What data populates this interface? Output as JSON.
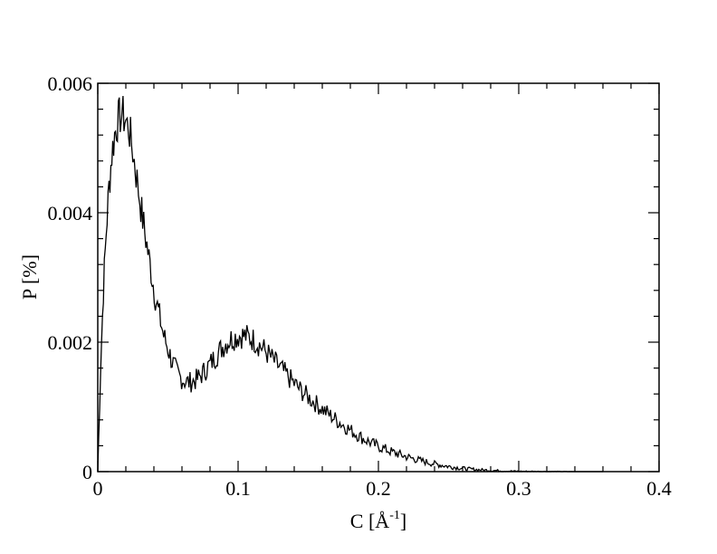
{
  "chart_data": {
    "type": "line",
    "title": "",
    "xlabel_main": "C [Å",
    "xlabel_sup": "-1",
    "xlabel_close": "]",
    "ylabel": "P [%]",
    "xlim": [
      0,
      0.4
    ],
    "ylim": [
      0,
      0.006
    ],
    "x_ticks": [
      0,
      0.1,
      0.2,
      0.3,
      0.4
    ],
    "x_tick_labels": [
      "0",
      "0.1",
      "0.2",
      "0.3",
      "0.4"
    ],
    "y_ticks": [
      0,
      0.002,
      0.004,
      0.006
    ],
    "y_tick_labels": [
      "0",
      "0.002",
      "0.004",
      "0.006"
    ],
    "grid": false,
    "line_color": "#000000",
    "series": [
      {
        "x": [
          0.0,
          0.002,
          0.004,
          0.006,
          0.008,
          0.01,
          0.012,
          0.014,
          0.016,
          0.018,
          0.02,
          0.022,
          0.024,
          0.026,
          0.028,
          0.03,
          0.032,
          0.035,
          0.038,
          0.041,
          0.044,
          0.047,
          0.05,
          0.053,
          0.056,
          0.059,
          0.062,
          0.065,
          0.068,
          0.071,
          0.074,
          0.077,
          0.08,
          0.083,
          0.086,
          0.089,
          0.092,
          0.095,
          0.098,
          0.101,
          0.104,
          0.107,
          0.11,
          0.113,
          0.116,
          0.12,
          0.125,
          0.13,
          0.135,
          0.14,
          0.145,
          0.15,
          0.155,
          0.16,
          0.165,
          0.17,
          0.175,
          0.18,
          0.185,
          0.19,
          0.195,
          0.2,
          0.21,
          0.22,
          0.23,
          0.24,
          0.25,
          0.26,
          0.27,
          0.28,
          0.29,
          0.3,
          0.31,
          0.32,
          0.33,
          0.34,
          0.35,
          0.36
        ],
        "y": [
          0.0,
          0.0016,
          0.0028,
          0.0037,
          0.0044,
          0.0049,
          0.0052,
          0.0054,
          0.0055,
          0.0055,
          0.0054,
          0.0053,
          0.0051,
          0.0048,
          0.0045,
          0.0042,
          0.0039,
          0.0035,
          0.0031,
          0.0027,
          0.0024,
          0.0021,
          0.0019,
          0.0017,
          0.00155,
          0.00145,
          0.0014,
          0.00138,
          0.0014,
          0.00143,
          0.0015,
          0.00158,
          0.00166,
          0.00175,
          0.00184,
          0.00193,
          0.002,
          0.00205,
          0.00208,
          0.0021,
          0.0021,
          0.00208,
          0.00205,
          0.002,
          0.00194,
          0.00185,
          0.00172,
          0.0016,
          0.00148,
          0.00136,
          0.00125,
          0.00115,
          0.00106,
          0.00097,
          0.00088,
          0.0008,
          0.00072,
          0.00064,
          0.00057,
          0.0005,
          0.00044,
          0.00039,
          0.0003,
          0.00023,
          0.00017,
          0.00012,
          8e-05,
          5e-05,
          3e-05,
          2e-05,
          1e-05,
          5e-06,
          3e-06,
          2e-06,
          1e-06,
          0.0,
          0.0,
          0.0
        ]
      }
    ]
  }
}
